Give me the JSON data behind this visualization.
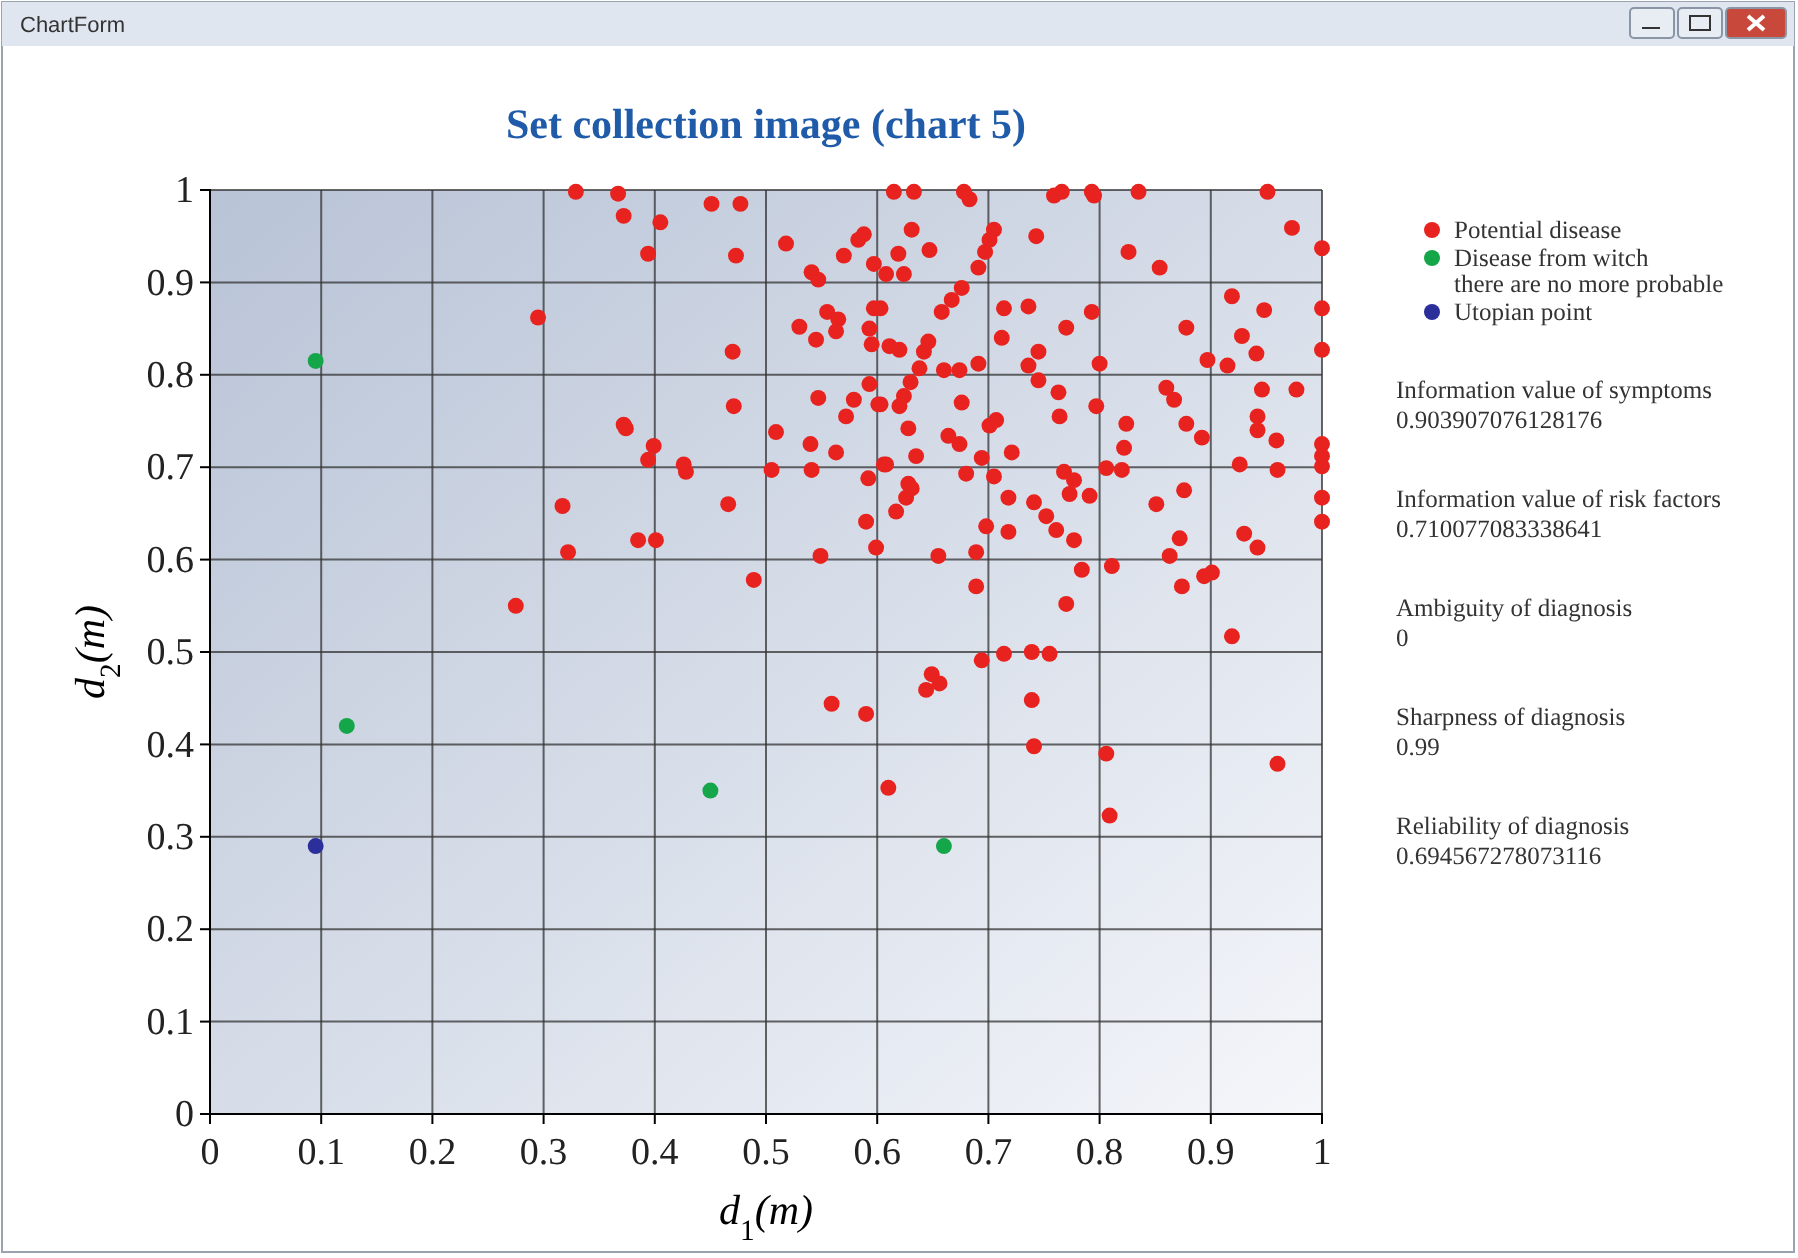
{
  "chart_data": {
    "type": "scatter",
    "title": "Set collection image (chart 5)",
    "xlabel": "d$_{1}$(m)",
    "ylabel": "d$_{2}$(m)",
    "xlim": [
      0,
      1
    ],
    "ylim": [
      0,
      1
    ],
    "xticks": [
      0,
      0.1,
      0.2,
      0.3,
      0.4,
      0.5,
      0.6,
      0.7,
      0.8,
      0.9,
      1
    ],
    "yticks": [
      0,
      0.1,
      0.2,
      0.3,
      0.4,
      0.5,
      0.6,
      0.7,
      0.8,
      0.9,
      1
    ],
    "grid": true,
    "legend": "top right",
    "marker": "circle",
    "annotations": [
      "ChartForm",
      "Information value of symptoms\n0.903907076128176",
      "Information value of risk factors\n0.710077083338641",
      "Ambiguity of diagnosis\n0",
      "Sharpness of diagnosis\n0.99",
      "Reliability of diagnosis\n0.694567278073116"
    ],
    "series": [
      {
        "name": "Potential disease",
        "color": "#e8231f",
        "x": [
          0.615,
          0.633,
          0.678,
          0.683,
          0.759,
          0.766,
          0.793,
          0.795,
          0.835,
          0.951,
          0.631,
          0.647,
          0.619,
          0.608,
          0.624,
          0.705,
          0.701,
          0.697,
          0.691,
          0.743,
          0.826,
          0.854,
          0.973,
          1.0,
          0.676,
          0.667,
          0.658,
          0.714,
          0.736,
          0.793,
          0.77,
          0.712,
          0.646,
          0.642,
          0.611,
          0.62,
          0.745,
          0.736,
          0.691,
          0.674,
          0.66,
          0.638,
          0.8,
          0.878,
          0.919,
          0.948,
          1.0,
          0.928,
          0.941,
          0.897,
          0.915,
          1.0,
          0.63,
          0.624,
          0.62,
          0.603,
          0.676,
          0.628,
          0.745,
          0.763,
          0.764,
          0.797,
          0.707,
          0.701,
          0.664,
          0.674,
          0.635,
          0.694,
          0.721,
          0.608,
          0.86,
          0.867,
          0.824,
          0.822,
          0.878,
          0.892,
          0.946,
          0.977,
          0.942,
          0.942,
          0.959,
          1.0,
          1.0,
          1.0,
          0.926,
          0.96,
          0.806,
          0.82,
          0.68,
          0.705,
          0.768,
          0.777,
          0.773,
          0.791,
          0.628,
          0.631,
          0.626,
          0.617,
          0.718,
          0.741,
          0.752,
          0.761,
          0.777,
          0.718,
          0.698,
          0.689,
          0.655,
          0.851,
          0.876,
          0.872,
          0.863,
          0.93,
          0.942,
          1.0,
          1.0,
          0.784,
          0.811,
          0.689,
          0.874,
          0.894,
          0.901,
          0.77,
          0.919,
          0.329,
          0.367,
          0.372,
          0.405,
          0.394,
          0.451,
          0.477,
          0.473,
          0.518,
          0.588,
          0.583,
          0.57,
          0.597,
          0.541,
          0.547,
          0.295,
          0.47,
          0.53,
          0.545,
          0.555,
          0.563,
          0.565,
          0.593,
          0.597,
          0.595,
          0.603,
          0.593,
          0.547,
          0.579,
          0.572,
          0.601,
          0.471,
          0.372,
          0.374,
          0.509,
          0.54,
          0.563,
          0.399,
          0.394,
          0.426,
          0.428,
          0.505,
          0.541,
          0.606,
          0.592,
          0.317,
          0.466,
          0.59,
          0.322,
          0.385,
          0.401,
          0.489,
          0.549,
          0.599,
          0.275,
          0.694,
          0.714,
          0.739,
          0.755,
          0.649,
          0.656,
          0.644,
          0.559,
          0.59,
          0.739,
          0.741,
          0.806,
          0.96,
          0.61,
          0.809
        ],
        "values": [
          0.998,
          0.998,
          0.998,
          0.99,
          0.994,
          0.998,
          0.998,
          0.994,
          0.998,
          0.998,
          0.957,
          0.935,
          0.931,
          0.909,
          0.909,
          0.957,
          0.946,
          0.933,
          0.916,
          0.95,
          0.933,
          0.916,
          0.959,
          0.937,
          0.894,
          0.881,
          0.868,
          0.872,
          0.874,
          0.868,
          0.851,
          0.84,
          0.836,
          0.825,
          0.831,
          0.827,
          0.825,
          0.81,
          0.812,
          0.805,
          0.805,
          0.807,
          0.812,
          0.851,
          0.885,
          0.87,
          0.872,
          0.842,
          0.823,
          0.816,
          0.81,
          0.827,
          0.792,
          0.777,
          0.766,
          0.768,
          0.77,
          0.742,
          0.794,
          0.781,
          0.755,
          0.766,
          0.751,
          0.745,
          0.734,
          0.725,
          0.712,
          0.71,
          0.716,
          0.703,
          0.786,
          0.773,
          0.747,
          0.721,
          0.747,
          0.732,
          0.784,
          0.784,
          0.755,
          0.74,
          0.729,
          0.725,
          0.712,
          0.701,
          0.703,
          0.697,
          0.699,
          0.697,
          0.693,
          0.69,
          0.695,
          0.686,
          0.671,
          0.669,
          0.682,
          0.677,
          0.667,
          0.652,
          0.667,
          0.662,
          0.647,
          0.632,
          0.621,
          0.63,
          0.636,
          0.608,
          0.604,
          0.66,
          0.675,
          0.623,
          0.604,
          0.628,
          0.613,
          0.667,
          0.641,
          0.589,
          0.593,
          0.571,
          0.571,
          0.582,
          0.586,
          0.552,
          0.517,
          0.998,
          0.996,
          0.972,
          0.965,
          0.931,
          0.985,
          0.985,
          0.929,
          0.942,
          0.952,
          0.946,
          0.929,
          0.92,
          0.911,
          0.903,
          0.862,
          0.825,
          0.852,
          0.838,
          0.868,
          0.847,
          0.86,
          0.85,
          0.872,
          0.833,
          0.872,
          0.79,
          0.775,
          0.773,
          0.755,
          0.768,
          0.766,
          0.746,
          0.742,
          0.738,
          0.725,
          0.716,
          0.723,
          0.708,
          0.703,
          0.695,
          0.697,
          0.697,
          0.703,
          0.688,
          0.658,
          0.66,
          0.641,
          0.608,
          0.621,
          0.621,
          0.578,
          0.604,
          0.613,
          0.55,
          0.491,
          0.498,
          0.5,
          0.498,
          0.476,
          0.466,
          0.459,
          0.444,
          0.433,
          0.448,
          0.398,
          0.39,
          0.379,
          0.353,
          0.323
        ]
      },
      {
        "name": "Disease from witch\nthere are no more probable",
        "color": "#16a64a",
        "x": [
          0.095,
          0.123,
          0.45,
          0.66
        ],
        "values": [
          0.815,
          0.42,
          0.35,
          0.29
        ]
      },
      {
        "name": "Utopian point",
        "color": "#2b2f9a",
        "x": [
          0.095
        ],
        "values": [
          0.29
        ]
      }
    ]
  }
}
